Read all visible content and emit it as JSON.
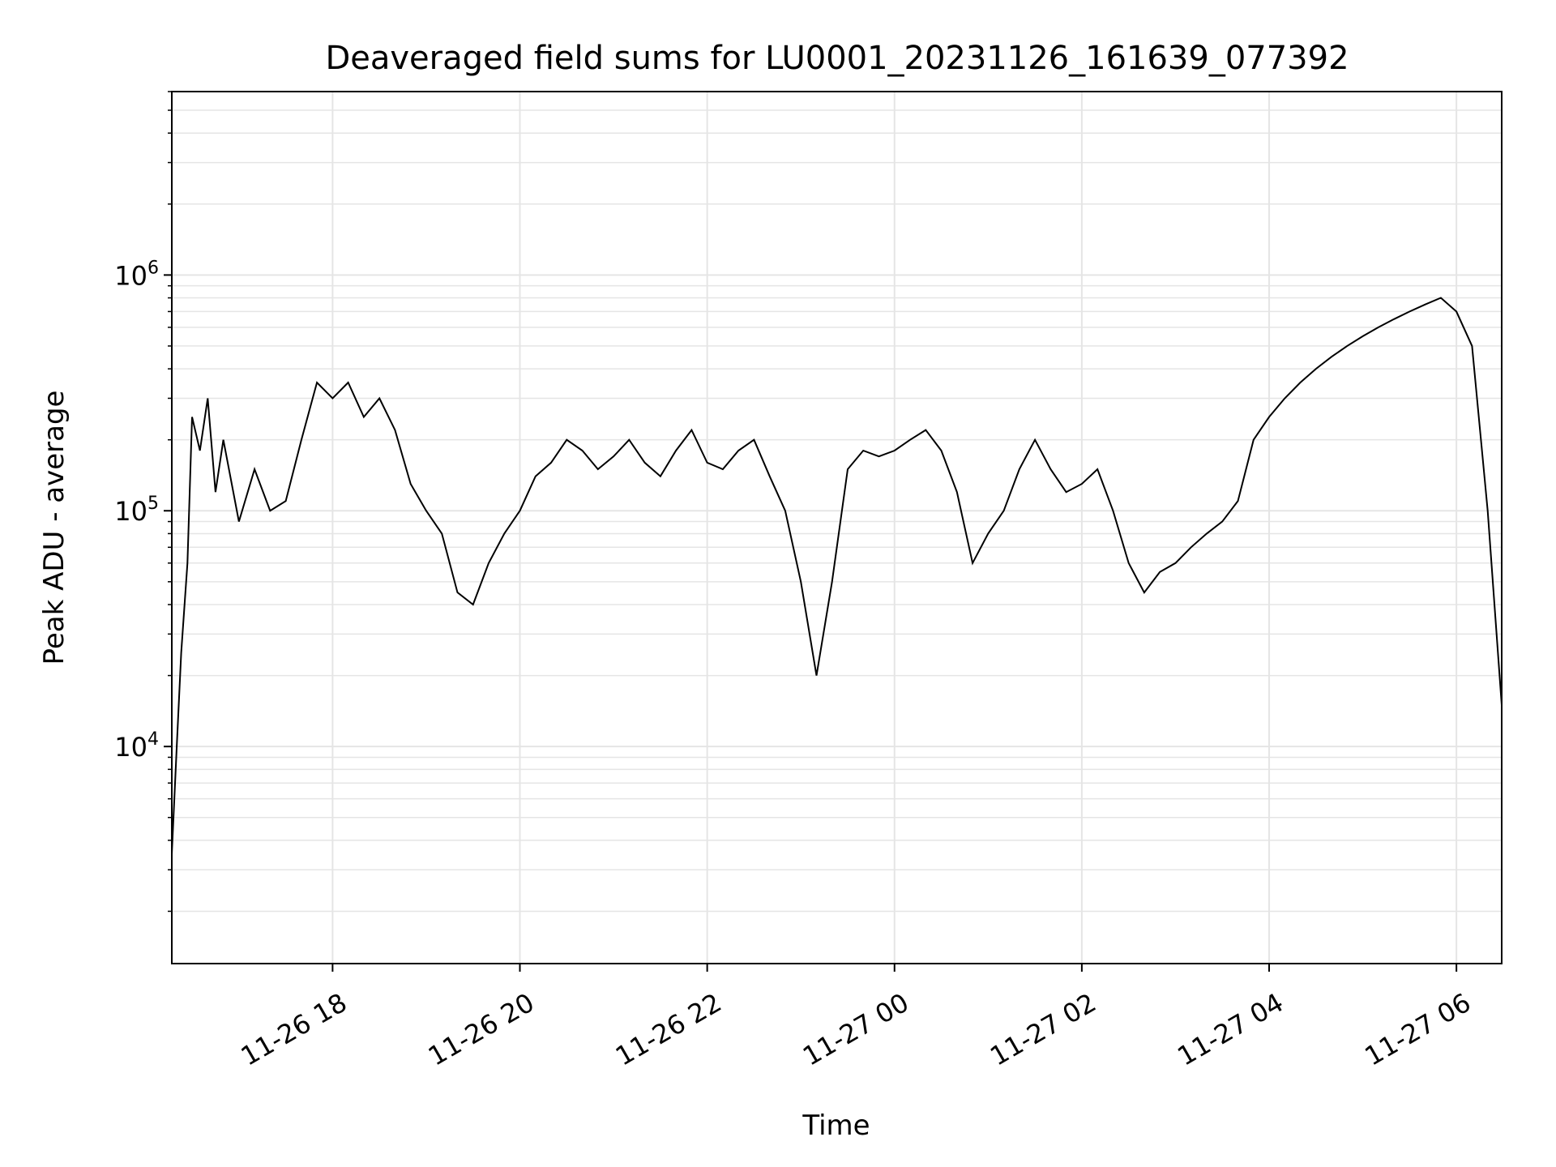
{
  "chart_data": {
    "type": "line",
    "title": "Deaveraged field sums for LU0001_20231126_161639_077392",
    "xlabel": "Time",
    "ylabel": "Peak ADU - average",
    "yscale": "log",
    "ylim": [
      1200,
      6000000
    ],
    "xlim": [
      "2023-11-26 16:17",
      "2023-11-27 06:29"
    ],
    "grid": true,
    "line_color": "#000000",
    "grid_color": "#e5e5e5",
    "x_tick_labels": [
      "11-26 18",
      "11-26 20",
      "11-26 22",
      "11-27 00",
      "11-27 02",
      "11-27 04",
      "11-27 06"
    ],
    "x_tick_values": [
      "2023-11-26 18:00",
      "2023-11-26 20:00",
      "2023-11-26 22:00",
      "2023-11-27 00:00",
      "2023-11-27 02:00",
      "2023-11-27 04:00",
      "2023-11-27 06:00"
    ],
    "y_tick_labels": [
      {
        "base": "10",
        "exp": "4"
      },
      {
        "base": "10",
        "exp": "5"
      },
      {
        "base": "10",
        "exp": "6"
      }
    ],
    "y_tick_values": [
      10000,
      100000,
      1000000
    ],
    "series": [
      {
        "values_note_free": true,
        "points": [
          [
            "2023-11-26 16:17",
            3500
          ],
          [
            "2023-11-26 16:20",
            9500
          ],
          [
            "2023-11-26 16:23",
            25000
          ],
          [
            "2023-11-26 16:27",
            60000
          ],
          [
            "2023-11-26 16:30",
            250000
          ],
          [
            "2023-11-26 16:35",
            180000
          ],
          [
            "2023-11-26 16:40",
            300000
          ],
          [
            "2023-11-26 16:45",
            120000
          ],
          [
            "2023-11-26 16:50",
            200000
          ],
          [
            "2023-11-26 17:00",
            90000
          ],
          [
            "2023-11-26 17:10",
            150000
          ],
          [
            "2023-11-26 17:20",
            100000
          ],
          [
            "2023-11-26 17:30",
            110000
          ],
          [
            "2023-11-26 17:40",
            200000
          ],
          [
            "2023-11-26 17:50",
            350000
          ],
          [
            "2023-11-26 18:00",
            300000
          ],
          [
            "2023-11-26 18:10",
            350000
          ],
          [
            "2023-11-26 18:20",
            250000
          ],
          [
            "2023-11-26 18:30",
            300000
          ],
          [
            "2023-11-26 18:40",
            220000
          ],
          [
            "2023-11-26 18:50",
            130000
          ],
          [
            "2023-11-26 19:00",
            100000
          ],
          [
            "2023-11-26 19:10",
            80000
          ],
          [
            "2023-11-26 19:20",
            45000
          ],
          [
            "2023-11-26 19:30",
            40000
          ],
          [
            "2023-11-26 19:40",
            60000
          ],
          [
            "2023-11-26 19:50",
            80000
          ],
          [
            "2023-11-26 20:00",
            100000
          ],
          [
            "2023-11-26 20:10",
            140000
          ],
          [
            "2023-11-26 20:20",
            160000
          ],
          [
            "2023-11-26 20:30",
            200000
          ],
          [
            "2023-11-26 20:40",
            180000
          ],
          [
            "2023-11-26 20:50",
            150000
          ],
          [
            "2023-11-26 21:00",
            170000
          ],
          [
            "2023-11-26 21:10",
            200000
          ],
          [
            "2023-11-26 21:20",
            160000
          ],
          [
            "2023-11-26 21:30",
            140000
          ],
          [
            "2023-11-26 21:40",
            180000
          ],
          [
            "2023-11-26 21:50",
            220000
          ],
          [
            "2023-11-26 22:00",
            160000
          ],
          [
            "2023-11-26 22:10",
            150000
          ],
          [
            "2023-11-26 22:20",
            180000
          ],
          [
            "2023-11-26 22:30",
            200000
          ],
          [
            "2023-11-26 22:40",
            140000
          ],
          [
            "2023-11-26 22:50",
            100000
          ],
          [
            "2023-11-26 23:00",
            50000
          ],
          [
            "2023-11-26 23:10",
            20000
          ],
          [
            "2023-11-26 23:20",
            50000
          ],
          [
            "2023-11-26 23:30",
            150000
          ],
          [
            "2023-11-26 23:40",
            180000
          ],
          [
            "2023-11-26 23:50",
            170000
          ],
          [
            "2023-11-27 00:00",
            180000
          ],
          [
            "2023-11-27 00:10",
            200000
          ],
          [
            "2023-11-27 00:20",
            220000
          ],
          [
            "2023-11-27 00:30",
            180000
          ],
          [
            "2023-11-27 00:40",
            120000
          ],
          [
            "2023-11-27 00:50",
            60000
          ],
          [
            "2023-11-27 01:00",
            80000
          ],
          [
            "2023-11-27 01:10",
            100000
          ],
          [
            "2023-11-27 01:20",
            150000
          ],
          [
            "2023-11-27 01:30",
            200000
          ],
          [
            "2023-11-27 01:40",
            150000
          ],
          [
            "2023-11-27 01:50",
            120000
          ],
          [
            "2023-11-27 02:00",
            130000
          ],
          [
            "2023-11-27 02:10",
            150000
          ],
          [
            "2023-11-27 02:20",
            100000
          ],
          [
            "2023-11-27 02:30",
            60000
          ],
          [
            "2023-11-27 02:40",
            45000
          ],
          [
            "2023-11-27 02:50",
            55000
          ],
          [
            "2023-11-27 03:00",
            60000
          ],
          [
            "2023-11-27 03:10",
            70000
          ],
          [
            "2023-11-27 03:20",
            80000
          ],
          [
            "2023-11-27 03:30",
            90000
          ],
          [
            "2023-11-27 03:40",
            110000
          ],
          [
            "2023-11-27 03:50",
            200000
          ],
          [
            "2023-11-27 04:00",
            250000
          ],
          [
            "2023-11-27 04:10",
            300000
          ],
          [
            "2023-11-27 04:20",
            350000
          ],
          [
            "2023-11-27 04:30",
            400000
          ],
          [
            "2023-11-27 04:40",
            450000
          ],
          [
            "2023-11-27 04:50",
            500000
          ],
          [
            "2023-11-27 05:00",
            550000
          ],
          [
            "2023-11-27 05:10",
            600000
          ],
          [
            "2023-11-27 05:20",
            650000
          ],
          [
            "2023-11-27 05:30",
            700000
          ],
          [
            "2023-11-27 05:40",
            750000
          ],
          [
            "2023-11-27 05:50",
            800000
          ],
          [
            "2023-11-27 06:00",
            700000
          ],
          [
            "2023-11-27 06:10",
            500000
          ],
          [
            "2023-11-27 06:20",
            100000
          ],
          [
            "2023-11-27 06:29",
            15000
          ]
        ]
      }
    ]
  }
}
